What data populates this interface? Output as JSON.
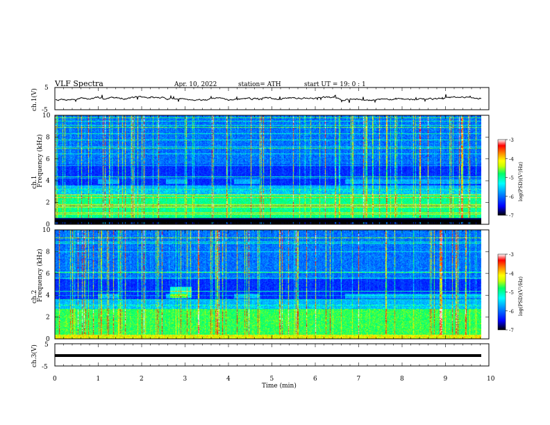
{
  "header": {
    "title": "VLF  Spectra",
    "date": "Apr. 10, 2022",
    "station": "station= ATH",
    "start": "start  UT  =    19: 0   : 1"
  },
  "colors": {
    "scale": [
      "#000000",
      "#0000ff",
      "#0099ff",
      "#00ffff",
      "#00ff66",
      "#ccff00",
      "#ffff00",
      "#ff8800",
      "#ff0000",
      "#ffffff"
    ]
  },
  "chart_data": [
    {
      "type": "line",
      "name": "ch1-waveform",
      "ylabel": "ch.1(V)",
      "ylim": [
        -5,
        5
      ],
      "yticks": [
        "5",
        "-5"
      ],
      "x_range_min": [
        0,
        9.8
      ],
      "level_V": 0.0,
      "grid": false
    },
    {
      "type": "heatmap",
      "name": "ch1-spectrogram",
      "ylabel": "ch.1\nFrequency (kHz)",
      "yticks": [
        "0",
        "2",
        "4",
        "6",
        "8",
        "10"
      ],
      "ylim": [
        0,
        10
      ],
      "xlim": [
        0,
        10
      ],
      "colorbar": {
        "label": "log(PSD)(V²/Hz)",
        "ticks": [
          "-3",
          "-4",
          "-5",
          "-6",
          "-7"
        ],
        "range": [
          -7,
          -3
        ]
      },
      "grid": false
    },
    {
      "type": "heatmap",
      "name": "ch2-spectrogram",
      "ylabel": "ch.2\nFrequency (kHz)",
      "yticks": [
        "0",
        "2",
        "4",
        "6",
        "8",
        "10"
      ],
      "ylim": [
        0,
        10
      ],
      "xlim": [
        0,
        10
      ],
      "colorbar": {
        "label": "log(PSD)(V²/Hz)",
        "ticks": [
          "-3",
          "-4",
          "-5",
          "-6",
          "-7"
        ],
        "range": [
          -7,
          -3
        ]
      },
      "grid": false
    },
    {
      "type": "line",
      "name": "ch3-waveform",
      "ylabel": "ch.3(V)",
      "ylim": [
        -5,
        5
      ],
      "yticks": [
        "5",
        "-5"
      ],
      "level_V": -1.0,
      "grid": false
    }
  ],
  "xaxis": {
    "label": "Time  (min)",
    "ticks": [
      "0",
      "1",
      "2",
      "3",
      "4",
      "5",
      "6",
      "7",
      "8",
      "9",
      "10"
    ]
  }
}
